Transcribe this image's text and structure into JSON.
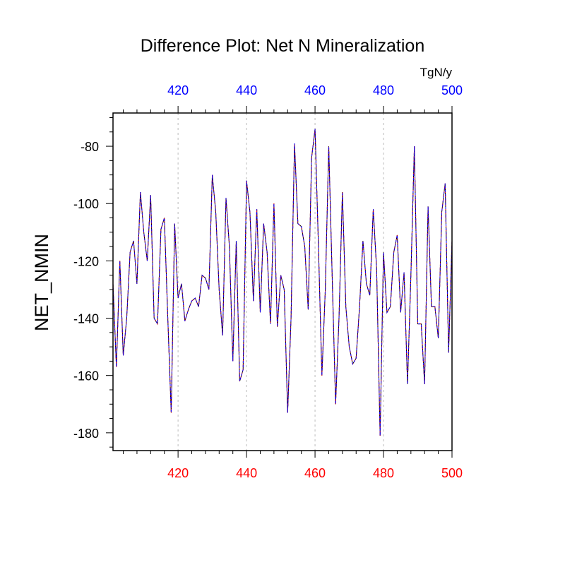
{
  "chart_data": {
    "type": "line",
    "title": "Difference Plot: Net N Mineralization",
    "ylabel": "NET_NMIN",
    "units": "TgN/y",
    "xlim": [
      401,
      500
    ],
    "ylim": [
      -186.2,
      -68.4
    ],
    "x_ticks": [
      420,
      440,
      460,
      480,
      500
    ],
    "y_ticks": [
      -80,
      -100,
      -120,
      -140,
      -160,
      -180
    ],
    "bottom_tick_color": "#ff0000",
    "top_tick_color": "#0000ff",
    "grid": "vertical dotted gray at major x ticks",
    "series": [
      {
        "color": "#000000",
        "dash": "solid"
      },
      {
        "color": "#ff0000",
        "dash": "dashed"
      },
      {
        "color": "#0000ff",
        "dash": "dashed"
      }
    ],
    "x_start": 401,
    "y": [
      -128,
      -157,
      -120,
      -153,
      -140,
      -117,
      -113,
      -128,
      -96,
      -110,
      -120,
      -97,
      -140,
      -142,
      -109,
      -105,
      -140,
      -173,
      -107,
      -133,
      -128,
      -141,
      -137,
      -134,
      -133,
      -136,
      -125,
      -126,
      -130,
      -90,
      -103,
      -130,
      -146,
      -98,
      -115,
      -155,
      -113,
      -162,
      -158,
      -92,
      -103,
      -134,
      -102,
      -138,
      -107,
      -117,
      -142,
      -100,
      -143,
      -125,
      -130,
      -173,
      -140,
      -79,
      -107,
      -108,
      -115,
      -137,
      -84,
      -74,
      -115,
      -160,
      -130,
      -80,
      -125,
      -170,
      -140,
      -96,
      -136,
      -150,
      -156,
      -154,
      -136,
      -113,
      -128,
      -132,
      -102,
      -123,
      -181,
      -117,
      -138,
      -136,
      -117,
      -111,
      -138,
      -124,
      -163,
      -125,
      -80,
      -142,
      -142,
      -163,
      -101,
      -136,
      -136,
      -147,
      -103,
      -93,
      -152,
      -113
    ]
  }
}
